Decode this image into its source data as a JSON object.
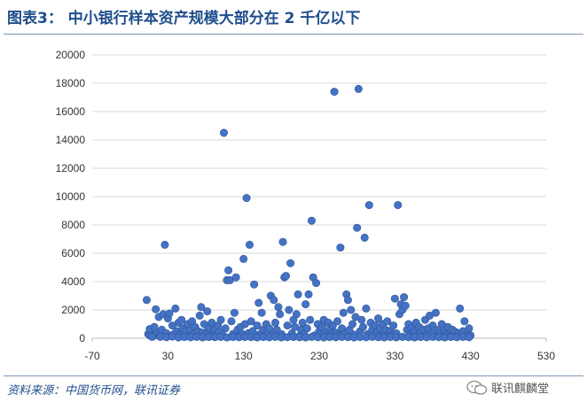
{
  "title": "图表3： 中小银行样本资产规模大部分在 2 千亿以下",
  "source": "资料来源：中国货币网，联讯证券",
  "watermark": "联讯麒麟堂",
  "colors": {
    "marker": "#4472c4",
    "marker_stroke": "#2f5597",
    "title": "#1f4e8c",
    "grid": "#d9d9d9"
  },
  "chart_data": {
    "type": "scatter",
    "title": "",
    "xlabel": "",
    "ylabel": "",
    "xlim": [
      -70,
      530
    ],
    "ylim": [
      0,
      20000
    ],
    "xticks": [
      -70,
      30,
      130,
      230,
      330,
      430,
      530
    ],
    "yticks": [
      0,
      2000,
      4000,
      6000,
      8000,
      10000,
      12000,
      14000,
      16000,
      18000,
      20000
    ],
    "ytick_labels": [
      "0",
      "2000",
      "4000",
      "6000",
      "8000",
      "10000",
      "12000",
      "14000",
      "16000",
      "18000",
      "20000"
    ],
    "grid": "horizontal",
    "legend": "none",
    "series": [
      {
        "points": [
          [
            2,
            2700
          ],
          [
            4,
            300
          ],
          [
            6,
            200
          ],
          [
            8,
            500
          ],
          [
            11,
            150
          ],
          [
            14,
            2050
          ],
          [
            16,
            400
          ],
          [
            18,
            1500
          ],
          [
            20,
            250
          ],
          [
            22,
            600
          ],
          [
            24,
            1700
          ],
          [
            26,
            6600
          ],
          [
            28,
            350
          ],
          [
            30,
            1400
          ],
          [
            32,
            1750
          ],
          [
            34,
            150
          ],
          [
            36,
            900
          ],
          [
            38,
            300
          ],
          [
            40,
            2100
          ],
          [
            42,
            500
          ],
          [
            44,
            1100
          ],
          [
            46,
            250
          ],
          [
            48,
            1300
          ],
          [
            50,
            700
          ],
          [
            52,
            150
          ],
          [
            54,
            450
          ],
          [
            56,
            1000
          ],
          [
            58,
            200
          ],
          [
            60,
            600
          ],
          [
            62,
            1200
          ],
          [
            64,
            300
          ],
          [
            66,
            800
          ],
          [
            68,
            150
          ],
          [
            70,
            500
          ],
          [
            72,
            1600
          ],
          [
            74,
            2200
          ],
          [
            76,
            400
          ],
          [
            78,
            1000
          ],
          [
            80,
            250
          ],
          [
            82,
            1900
          ],
          [
            84,
            700
          ],
          [
            86,
            150
          ],
          [
            88,
            1100
          ],
          [
            90,
            350
          ],
          [
            92,
            600
          ],
          [
            94,
            200
          ],
          [
            96,
            900
          ],
          [
            98,
            450
          ],
          [
            100,
            1300
          ],
          [
            102,
            250
          ],
          [
            104,
            14500
          ],
          [
            106,
            700
          ],
          [
            108,
            4100
          ],
          [
            110,
            4800
          ],
          [
            112,
            4100
          ],
          [
            114,
            1200
          ],
          [
            116,
            300
          ],
          [
            118,
            1800
          ],
          [
            120,
            4300
          ],
          [
            122,
            600
          ],
          [
            124,
            150
          ],
          [
            126,
            800
          ],
          [
            128,
            300
          ],
          [
            130,
            5600
          ],
          [
            132,
            1000
          ],
          [
            134,
            9900
          ],
          [
            136,
            350
          ],
          [
            138,
            6600
          ],
          [
            140,
            1200
          ],
          [
            142,
            500
          ],
          [
            144,
            3800
          ],
          [
            146,
            200
          ],
          [
            148,
            900
          ],
          [
            150,
            2500
          ],
          [
            152,
            300
          ],
          [
            154,
            1800
          ],
          [
            156,
            600
          ],
          [
            158,
            150
          ],
          [
            160,
            1000
          ],
          [
            162,
            400
          ],
          [
            164,
            700
          ],
          [
            166,
            3000
          ],
          [
            168,
            250
          ],
          [
            170,
            2700
          ],
          [
            172,
            1100
          ],
          [
            174,
            600
          ],
          [
            176,
            2200
          ],
          [
            178,
            1700
          ],
          [
            180,
            300
          ],
          [
            182,
            6800
          ],
          [
            184,
            4300
          ],
          [
            186,
            4400
          ],
          [
            188,
            900
          ],
          [
            190,
            2000
          ],
          [
            192,
            5300
          ],
          [
            194,
            350
          ],
          [
            196,
            1300
          ],
          [
            198,
            800
          ],
          [
            200,
            1700
          ],
          [
            202,
            3100
          ],
          [
            204,
            150
          ],
          [
            206,
            600
          ],
          [
            208,
            1100
          ],
          [
            210,
            300
          ],
          [
            212,
            2400
          ],
          [
            214,
            700
          ],
          [
            216,
            3100
          ],
          [
            218,
            1300
          ],
          [
            220,
            8300
          ],
          [
            222,
            4300
          ],
          [
            224,
            200
          ],
          [
            226,
            3900
          ],
          [
            228,
            1000
          ],
          [
            230,
            500
          ],
          [
            232,
            250
          ],
          [
            234,
            800
          ],
          [
            236,
            1300
          ],
          [
            238,
            400
          ],
          [
            240,
            150
          ],
          [
            242,
            1100
          ],
          [
            244,
            600
          ],
          [
            246,
            300
          ],
          [
            248,
            900
          ],
          [
            250,
            17400
          ],
          [
            252,
            400
          ],
          [
            254,
            1200
          ],
          [
            256,
            200
          ],
          [
            258,
            6400
          ],
          [
            260,
            700
          ],
          [
            262,
            1800
          ],
          [
            264,
            300
          ],
          [
            266,
            3100
          ],
          [
            268,
            2700
          ],
          [
            270,
            600
          ],
          [
            272,
            2000
          ],
          [
            274,
            1000
          ],
          [
            276,
            250
          ],
          [
            278,
            1500
          ],
          [
            280,
            7800
          ],
          [
            282,
            17600
          ],
          [
            284,
            500
          ],
          [
            286,
            1300
          ],
          [
            288,
            800
          ],
          [
            290,
            7100
          ],
          [
            292,
            2100
          ],
          [
            294,
            300
          ],
          [
            296,
            9400
          ],
          [
            298,
            1100
          ],
          [
            300,
            600
          ],
          [
            302,
            200
          ],
          [
            304,
            900
          ],
          [
            306,
            400
          ],
          [
            308,
            1400
          ],
          [
            310,
            700
          ],
          [
            312,
            150
          ],
          [
            314,
            1000
          ],
          [
            316,
            300
          ],
          [
            318,
            600
          ],
          [
            320,
            1200
          ],
          [
            322,
            250
          ],
          [
            324,
            500
          ],
          [
            326,
            200
          ],
          [
            328,
            900
          ],
          [
            330,
            2800
          ],
          [
            332,
            350
          ],
          [
            334,
            9400
          ],
          [
            336,
            1700
          ],
          [
            338,
            2400
          ],
          [
            340,
            2000
          ],
          [
            342,
            2900
          ],
          [
            344,
            2300
          ],
          [
            346,
            600
          ],
          [
            348,
            1000
          ],
          [
            350,
            300
          ],
          [
            352,
            700
          ],
          [
            354,
            150
          ],
          [
            356,
            500
          ],
          [
            358,
            1100
          ],
          [
            360,
            200
          ],
          [
            362,
            800
          ],
          [
            364,
            400
          ],
          [
            366,
            150
          ],
          [
            368,
            600
          ],
          [
            370,
            1300
          ],
          [
            372,
            250
          ],
          [
            374,
            700
          ],
          [
            376,
            1600
          ],
          [
            378,
            300
          ],
          [
            380,
            900
          ],
          [
            382,
            500
          ],
          [
            384,
            1800
          ],
          [
            386,
            200
          ],
          [
            388,
            600
          ],
          [
            390,
            350
          ],
          [
            392,
            1000
          ],
          [
            394,
            150
          ],
          [
            396,
            500
          ],
          [
            398,
            250
          ],
          [
            400,
            800
          ],
          [
            402,
            300
          ],
          [
            404,
            150
          ],
          [
            406,
            600
          ],
          [
            408,
            200
          ],
          [
            410,
            450
          ],
          [
            412,
            150
          ],
          [
            414,
            350
          ],
          [
            416,
            2100
          ],
          [
            418,
            250
          ],
          [
            420,
            500
          ],
          [
            422,
            1200
          ],
          [
            424,
            150
          ],
          [
            426,
            300
          ],
          [
            428,
            700
          ],
          [
            430,
            200
          ],
          [
            6,
            650
          ],
          [
            9,
            100
          ],
          [
            12,
            800
          ],
          [
            20,
            100
          ],
          [
            28,
            80
          ],
          [
            36,
            120
          ],
          [
            44,
            60
          ],
          [
            52,
            90
          ],
          [
            60,
            70
          ],
          [
            68,
            100
          ],
          [
            76,
            60
          ],
          [
            84,
            90
          ],
          [
            92,
            80
          ],
          [
            100,
            100
          ],
          [
            108,
            60
          ],
          [
            116,
            90
          ],
          [
            124,
            70
          ],
          [
            132,
            100
          ],
          [
            140,
            80
          ],
          [
            148,
            60
          ],
          [
            156,
            90
          ],
          [
            164,
            70
          ],
          [
            172,
            100
          ],
          [
            180,
            60
          ],
          [
            188,
            80
          ],
          [
            196,
            90
          ],
          [
            204,
            70
          ],
          [
            212,
            60
          ],
          [
            220,
            100
          ],
          [
            228,
            80
          ],
          [
            236,
            60
          ],
          [
            244,
            90
          ],
          [
            252,
            70
          ],
          [
            260,
            100
          ],
          [
            268,
            80
          ],
          [
            276,
            60
          ],
          [
            284,
            90
          ],
          [
            292,
            70
          ],
          [
            300,
            100
          ],
          [
            308,
            80
          ],
          [
            316,
            60
          ],
          [
            324,
            90
          ],
          [
            332,
            70
          ],
          [
            340,
            100
          ],
          [
            348,
            80
          ],
          [
            356,
            60
          ],
          [
            364,
            90
          ],
          [
            372,
            70
          ],
          [
            380,
            100
          ],
          [
            388,
            80
          ],
          [
            396,
            60
          ],
          [
            404,
            90
          ],
          [
            412,
            70
          ],
          [
            420,
            100
          ],
          [
            428,
            80
          ]
        ]
      }
    ]
  }
}
